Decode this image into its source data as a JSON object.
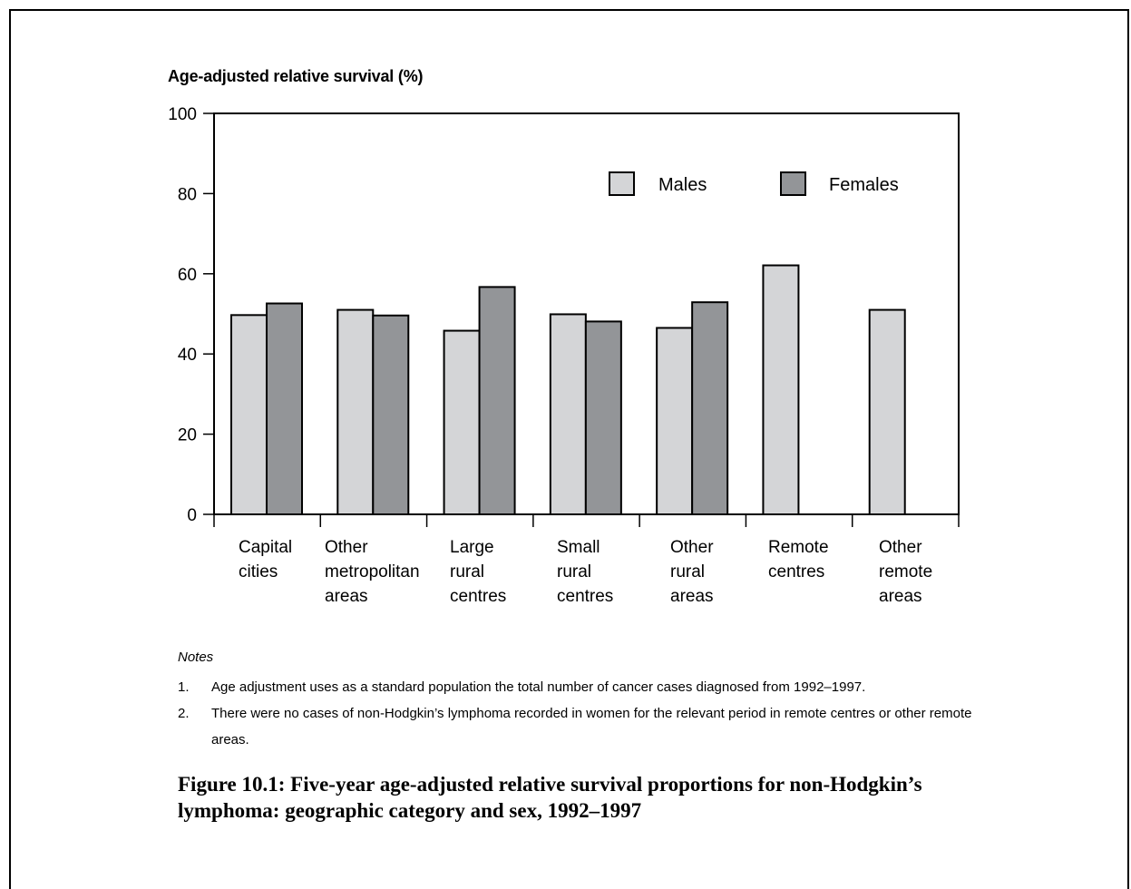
{
  "chart_data": {
    "type": "bar",
    "y_axis_title": "Age-adjusted relative survival (%)",
    "ylim": [
      0,
      100
    ],
    "yticks": [
      0,
      20,
      40,
      60,
      80,
      100
    ],
    "categories": [
      "Capital\ncities",
      "Other\nmetropolitan\nareas",
      "Large\nrural\ncentres",
      "Small\nrural\ncentres",
      "Other\nrural\nareas",
      "Remote\ncentres",
      "Other\nremote\nareas"
    ],
    "series": [
      {
        "name": "Males",
        "color": "#d4d5d7",
        "values": [
          49.7,
          51.0,
          45.8,
          49.9,
          46.5,
          62.1,
          51.0
        ]
      },
      {
        "name": "Females",
        "color": "#939598",
        "values": [
          52.6,
          49.6,
          56.7,
          48.1,
          52.9,
          null,
          null
        ]
      }
    ],
    "legend_position": "top-right",
    "grid": false
  },
  "notes": {
    "heading": "Notes",
    "items": [
      {
        "num": "1.",
        "text": "Age adjustment uses as a standard population the total number of cancer cases diagnosed from 1992–1997."
      },
      {
        "num": "2.",
        "text": "There were no cases of non-Hodgkin’s lymphoma recorded in women for the relevant period in remote centres or other remote areas."
      }
    ]
  },
  "caption": "Figure 10.1: Five-year age-adjusted relative survival proportions for non-Hodgkin’s lymphoma: geographic category and sex, 1992–1997"
}
